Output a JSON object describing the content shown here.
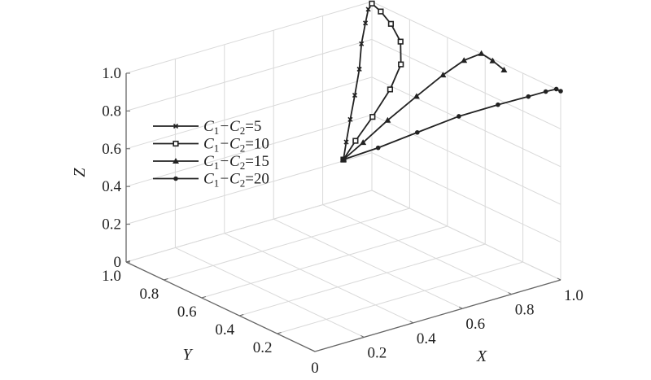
{
  "chart_data": {
    "type": "line",
    "projection": "3d",
    "xlabel": "X",
    "ylabel": "Y",
    "zlabel": "Z",
    "xlim": [
      0,
      1
    ],
    "ylim": [
      0,
      1
    ],
    "zlim": [
      0,
      1
    ],
    "grid": true,
    "legend_position": "left",
    "x_ticks": [
      "0",
      "0.2",
      "0.4",
      "0.6",
      "0.8",
      "1.0"
    ],
    "y_ticks": [
      "0",
      "0.2",
      "0.4",
      "0.6",
      "0.8",
      "1.0"
    ],
    "z_ticks": [
      "0",
      "0.2",
      "0.4",
      "0.6",
      "0.8",
      "1.0"
    ],
    "series": [
      {
        "name": "C1−C2=5",
        "label": {
          "c": "C",
          "s1": "1",
          "m": "−C",
          "s2": "2",
          "v": "=5"
        },
        "marker": "x",
        "color": "#222222",
        "points": [
          [
            0.5,
            0.5,
            0.59
          ],
          [
            0.55,
            0.55,
            0.64
          ],
          [
            0.62,
            0.62,
            0.7
          ],
          [
            0.7,
            0.7,
            0.76
          ],
          [
            0.78,
            0.78,
            0.83
          ],
          [
            0.85,
            0.86,
            0.9
          ],
          [
            0.92,
            0.93,
            0.95
          ],
          [
            0.97,
            0.98,
            0.98
          ],
          [
            1.0,
            1.0,
            0.99
          ]
        ]
      },
      {
        "name": "C1−C2=10",
        "label": {
          "c": "C",
          "s1": "1",
          "m": "−C",
          "s2": "2",
          "v": "=10"
        },
        "marker": "square",
        "color": "#222222",
        "points": [
          [
            0.5,
            0.5,
            0.59
          ],
          [
            0.58,
            0.54,
            0.64
          ],
          [
            0.68,
            0.58,
            0.71
          ],
          [
            0.79,
            0.63,
            0.79
          ],
          [
            0.88,
            0.69,
            0.86
          ],
          [
            0.94,
            0.77,
            0.92
          ],
          [
            0.97,
            0.86,
            0.96
          ],
          [
            0.99,
            0.94,
            0.98
          ],
          [
            1.0,
            1.0,
            0.99
          ]
        ]
      },
      {
        "name": "C1−C2=15",
        "label": {
          "c": "C",
          "s1": "1",
          "m": "−C",
          "s2": "2",
          "v": "=15"
        },
        "marker": "triangle",
        "color": "#222222",
        "points": [
          [
            0.5,
            0.5,
            0.59
          ],
          [
            0.58,
            0.5,
            0.65
          ],
          [
            0.68,
            0.5,
            0.73
          ],
          [
            0.79,
            0.49,
            0.82
          ],
          [
            0.89,
            0.48,
            0.9
          ],
          [
            0.96,
            0.46,
            0.96
          ],
          [
            1.0,
            0.42,
            1.0
          ],
          [
            1.0,
            0.36,
            0.99
          ],
          [
            1.0,
            0.3,
            0.97
          ]
        ]
      },
      {
        "name": "C1−C2=20",
        "label": {
          "c": "C",
          "s1": "1",
          "m": "−C",
          "s2": "2",
          "v": "=20"
        },
        "marker": "circle",
        "color": "#222222",
        "points": [
          [
            0.5,
            0.5,
            0.59
          ],
          [
            0.58,
            0.42,
            0.66
          ],
          [
            0.67,
            0.33,
            0.75
          ],
          [
            0.77,
            0.24,
            0.84
          ],
          [
            0.86,
            0.15,
            0.91
          ],
          [
            0.93,
            0.08,
            0.96
          ],
          [
            0.97,
            0.04,
            0.99
          ],
          [
            0.99,
            0.01,
            1.01
          ],
          [
            1.0,
            0.0,
            1.0
          ]
        ]
      }
    ]
  }
}
